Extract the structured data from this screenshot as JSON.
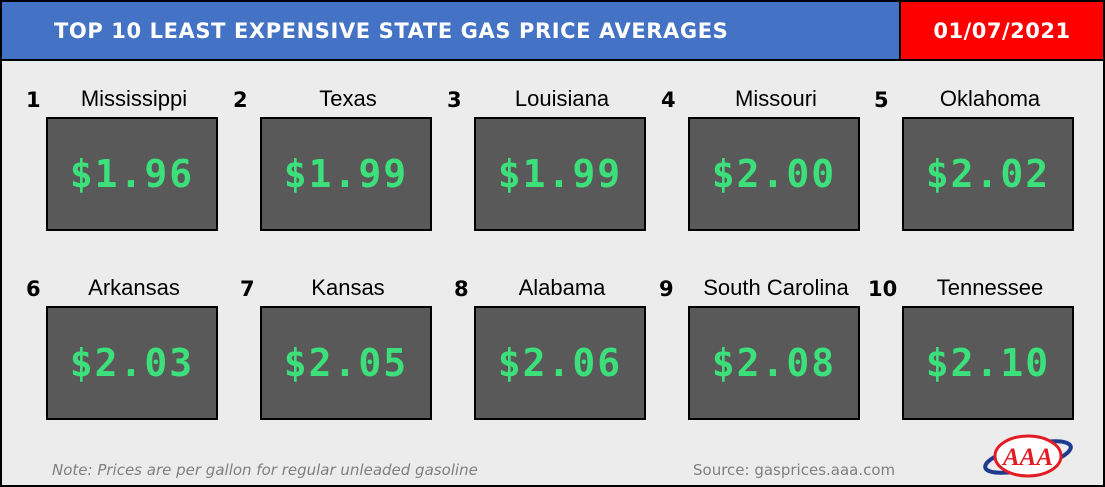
{
  "header": {
    "title": "TOP 10 LEAST EXPENSIVE STATE GAS PRICE AVERAGES",
    "date": "01/07/2021"
  },
  "items": [
    {
      "rank": "1",
      "state": "Mississippi",
      "price": "$1.96"
    },
    {
      "rank": "2",
      "state": "Texas",
      "price": "$1.99"
    },
    {
      "rank": "3",
      "state": "Louisiana",
      "price": "$1.99"
    },
    {
      "rank": "4",
      "state": "Missouri",
      "price": "$2.00"
    },
    {
      "rank": "5",
      "state": "Oklahoma",
      "price": "$2.02"
    },
    {
      "rank": "6",
      "state": "Arkansas",
      "price": "$2.03"
    },
    {
      "rank": "7",
      "state": "Kansas",
      "price": "$2.05"
    },
    {
      "rank": "8",
      "state": "Alabama",
      "price": "$2.06"
    },
    {
      "rank": "9",
      "state": "South Carolina",
      "price": "$2.08"
    },
    {
      "rank": "10",
      "state": "Tennessee",
      "price": "$2.10"
    }
  ],
  "footer": {
    "note": "Note: Prices are per gallon for regular unleaded gasoline",
    "source": "Source: gasprices.aaa.com"
  },
  "logo": {
    "text": "AAA",
    "icon": "aaa-logo-icon"
  },
  "colors": {
    "title_bar": "#4472c4",
    "date_box": "#ff0000",
    "price_box": "#595959",
    "price_text": "#3ce07a",
    "background": "#ececec"
  }
}
